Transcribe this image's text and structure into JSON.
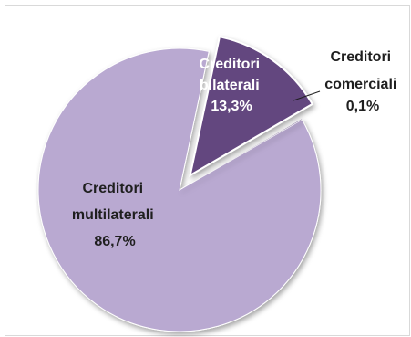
{
  "chart_data": {
    "type": "pie",
    "title": "",
    "slices": [
      {
        "label": [
          "Creditori",
          "bilaterali"
        ],
        "value_label": "13,3%",
        "value": 13.3,
        "color": "#64467f",
        "exploded": true
      },
      {
        "label": [
          "Creditori",
          "comerciali"
        ],
        "value_label": "0,1%",
        "value": 0.1,
        "color": "#8e7aa8",
        "exploded": false
      },
      {
        "label": [
          "Creditori",
          "multilaterali"
        ],
        "value_label": "86,7%",
        "value": 86.7,
        "color": "#b9a9d1",
        "exploded": false
      }
    ],
    "legend": "none",
    "text_colors": {
      "on_dark": "#ffffff",
      "on_light": "#1f1f1f"
    }
  }
}
